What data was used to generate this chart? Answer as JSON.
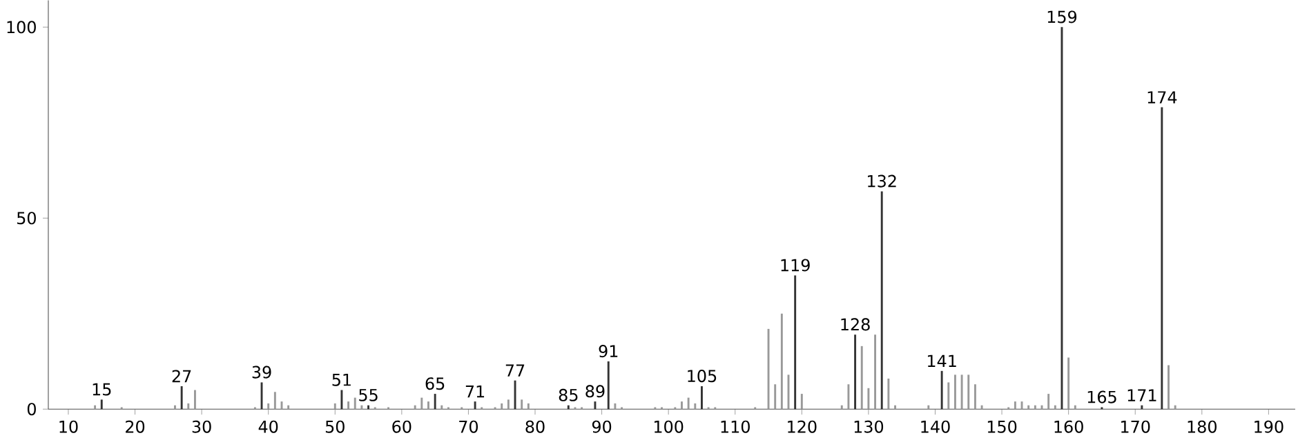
{
  "chart_data": {
    "type": "bar",
    "x": [
      14,
      15,
      18,
      26,
      27,
      28,
      29,
      38,
      39,
      40,
      41,
      42,
      43,
      50,
      51,
      52,
      53,
      54,
      55,
      56,
      58,
      62,
      63,
      64,
      65,
      66,
      67,
      69,
      71,
      72,
      74,
      75,
      76,
      77,
      78,
      79,
      85,
      86,
      87,
      89,
      91,
      92,
      93,
      98,
      99,
      101,
      102,
      103,
      104,
      105,
      106,
      107,
      113,
      115,
      116,
      117,
      118,
      119,
      120,
      126,
      127,
      128,
      129,
      130,
      131,
      132,
      133,
      134,
      139,
      141,
      142,
      143,
      144,
      145,
      146,
      147,
      151,
      152,
      153,
      154,
      155,
      156,
      157,
      158,
      159,
      160,
      161,
      165,
      171,
      174,
      175,
      176
    ],
    "values": [
      1,
      2.5,
      0.5,
      1,
      6,
      1.5,
      5,
      0.5,
      7,
      1.5,
      4.5,
      2,
      1,
      1.5,
      5,
      2,
      3,
      1,
      1,
      0.5,
      0.5,
      1,
      3,
      2,
      4,
      1,
      0.5,
      0.5,
      2,
      0.5,
      0.5,
      1.5,
      2.5,
      7.5,
      2.5,
      1.5,
      1,
      0.5,
      0.5,
      2,
      12.5,
      1.5,
      0.5,
      0.5,
      0.5,
      0.5,
      2,
      3,
      1.5,
      6,
      0.5,
      0.5,
      0.5,
      21,
      6.5,
      25,
      9,
      35,
      4,
      1,
      6.5,
      19.5,
      16.5,
      5.5,
      19.5,
      57,
      8,
      1,
      1,
      10,
      7,
      9,
      9,
      9,
      6.5,
      1,
      0.5,
      2,
      2,
      1,
      1,
      1,
      4,
      1,
      100,
      13.5,
      1,
      0.5,
      1,
      79,
      11.5,
      1
    ],
    "colors": [
      "#999999",
      "#333333",
      "#999999",
      "#999999",
      "#333333",
      "#999999",
      "#999999",
      "#999999",
      "#333333",
      "#999999",
      "#999999",
      "#999999",
      "#999999",
      "#999999",
      "#333333",
      "#999999",
      "#999999",
      "#999999",
      "#333333",
      "#999999",
      "#999999",
      "#999999",
      "#999999",
      "#999999",
      "#333333",
      "#999999",
      "#999999",
      "#999999",
      "#333333",
      "#999999",
      "#999999",
      "#999999",
      "#999999",
      "#333333",
      "#999999",
      "#999999",
      "#333333",
      "#999999",
      "#999999",
      "#333333",
      "#333333",
      "#999999",
      "#999999",
      "#999999",
      "#999999",
      "#999999",
      "#999999",
      "#999999",
      "#999999",
      "#333333",
      "#999999",
      "#999999",
      "#999999",
      "#999999",
      "#999999",
      "#999999",
      "#999999",
      "#333333",
      "#999999",
      "#999999",
      "#999999",
      "#333333",
      "#999999",
      "#999999",
      "#999999",
      "#333333",
      "#999999",
      "#999999",
      "#999999",
      "#333333",
      "#999999",
      "#999999",
      "#999999",
      "#999999",
      "#999999",
      "#999999",
      "#999999",
      "#999999",
      "#999999",
      "#999999",
      "#999999",
      "#999999",
      "#999999",
      "#999999",
      "#333333",
      "#999999",
      "#999999",
      "#333333",
      "#333333",
      "#333333",
      "#999999",
      "#999999"
    ],
    "xlim": [
      7,
      194
    ],
    "ylim": [
      0,
      107
    ],
    "xticks": [
      10,
      20,
      30,
      40,
      50,
      60,
      70,
      80,
      90,
      100,
      110,
      120,
      130,
      140,
      150,
      160,
      170,
      180,
      190
    ],
    "yticks": [
      0,
      50,
      100
    ],
    "annotations": [
      {
        "text": "15",
        "x": 15,
        "y": 2.5
      },
      {
        "text": "27",
        "x": 27,
        "y": 6
      },
      {
        "text": "39",
        "x": 39,
        "y": 7
      },
      {
        "text": "51",
        "x": 51,
        "y": 5
      },
      {
        "text": "55",
        "x": 55,
        "y": 1
      },
      {
        "text": "65",
        "x": 65,
        "y": 4
      },
      {
        "text": "71",
        "x": 71,
        "y": 2
      },
      {
        "text": "77",
        "x": 77,
        "y": 7.5
      },
      {
        "text": "85",
        "x": 85,
        "y": 1
      },
      {
        "text": "89",
        "x": 89,
        "y": 2
      },
      {
        "text": "91",
        "x": 91,
        "y": 12.5
      },
      {
        "text": "105",
        "x": 105,
        "y": 6
      },
      {
        "text": "119",
        "x": 119,
        "y": 35
      },
      {
        "text": "128",
        "x": 128,
        "y": 19.5
      },
      {
        "text": "132",
        "x": 132,
        "y": 57
      },
      {
        "text": "141",
        "x": 141,
        "y": 10
      },
      {
        "text": "159",
        "x": 159,
        "y": 100
      },
      {
        "text": "165",
        "x": 165,
        "y": 0.5
      },
      {
        "text": "171",
        "x": 171,
        "y": 1
      },
      {
        "text": "174",
        "x": 174,
        "y": 79
      }
    ]
  }
}
